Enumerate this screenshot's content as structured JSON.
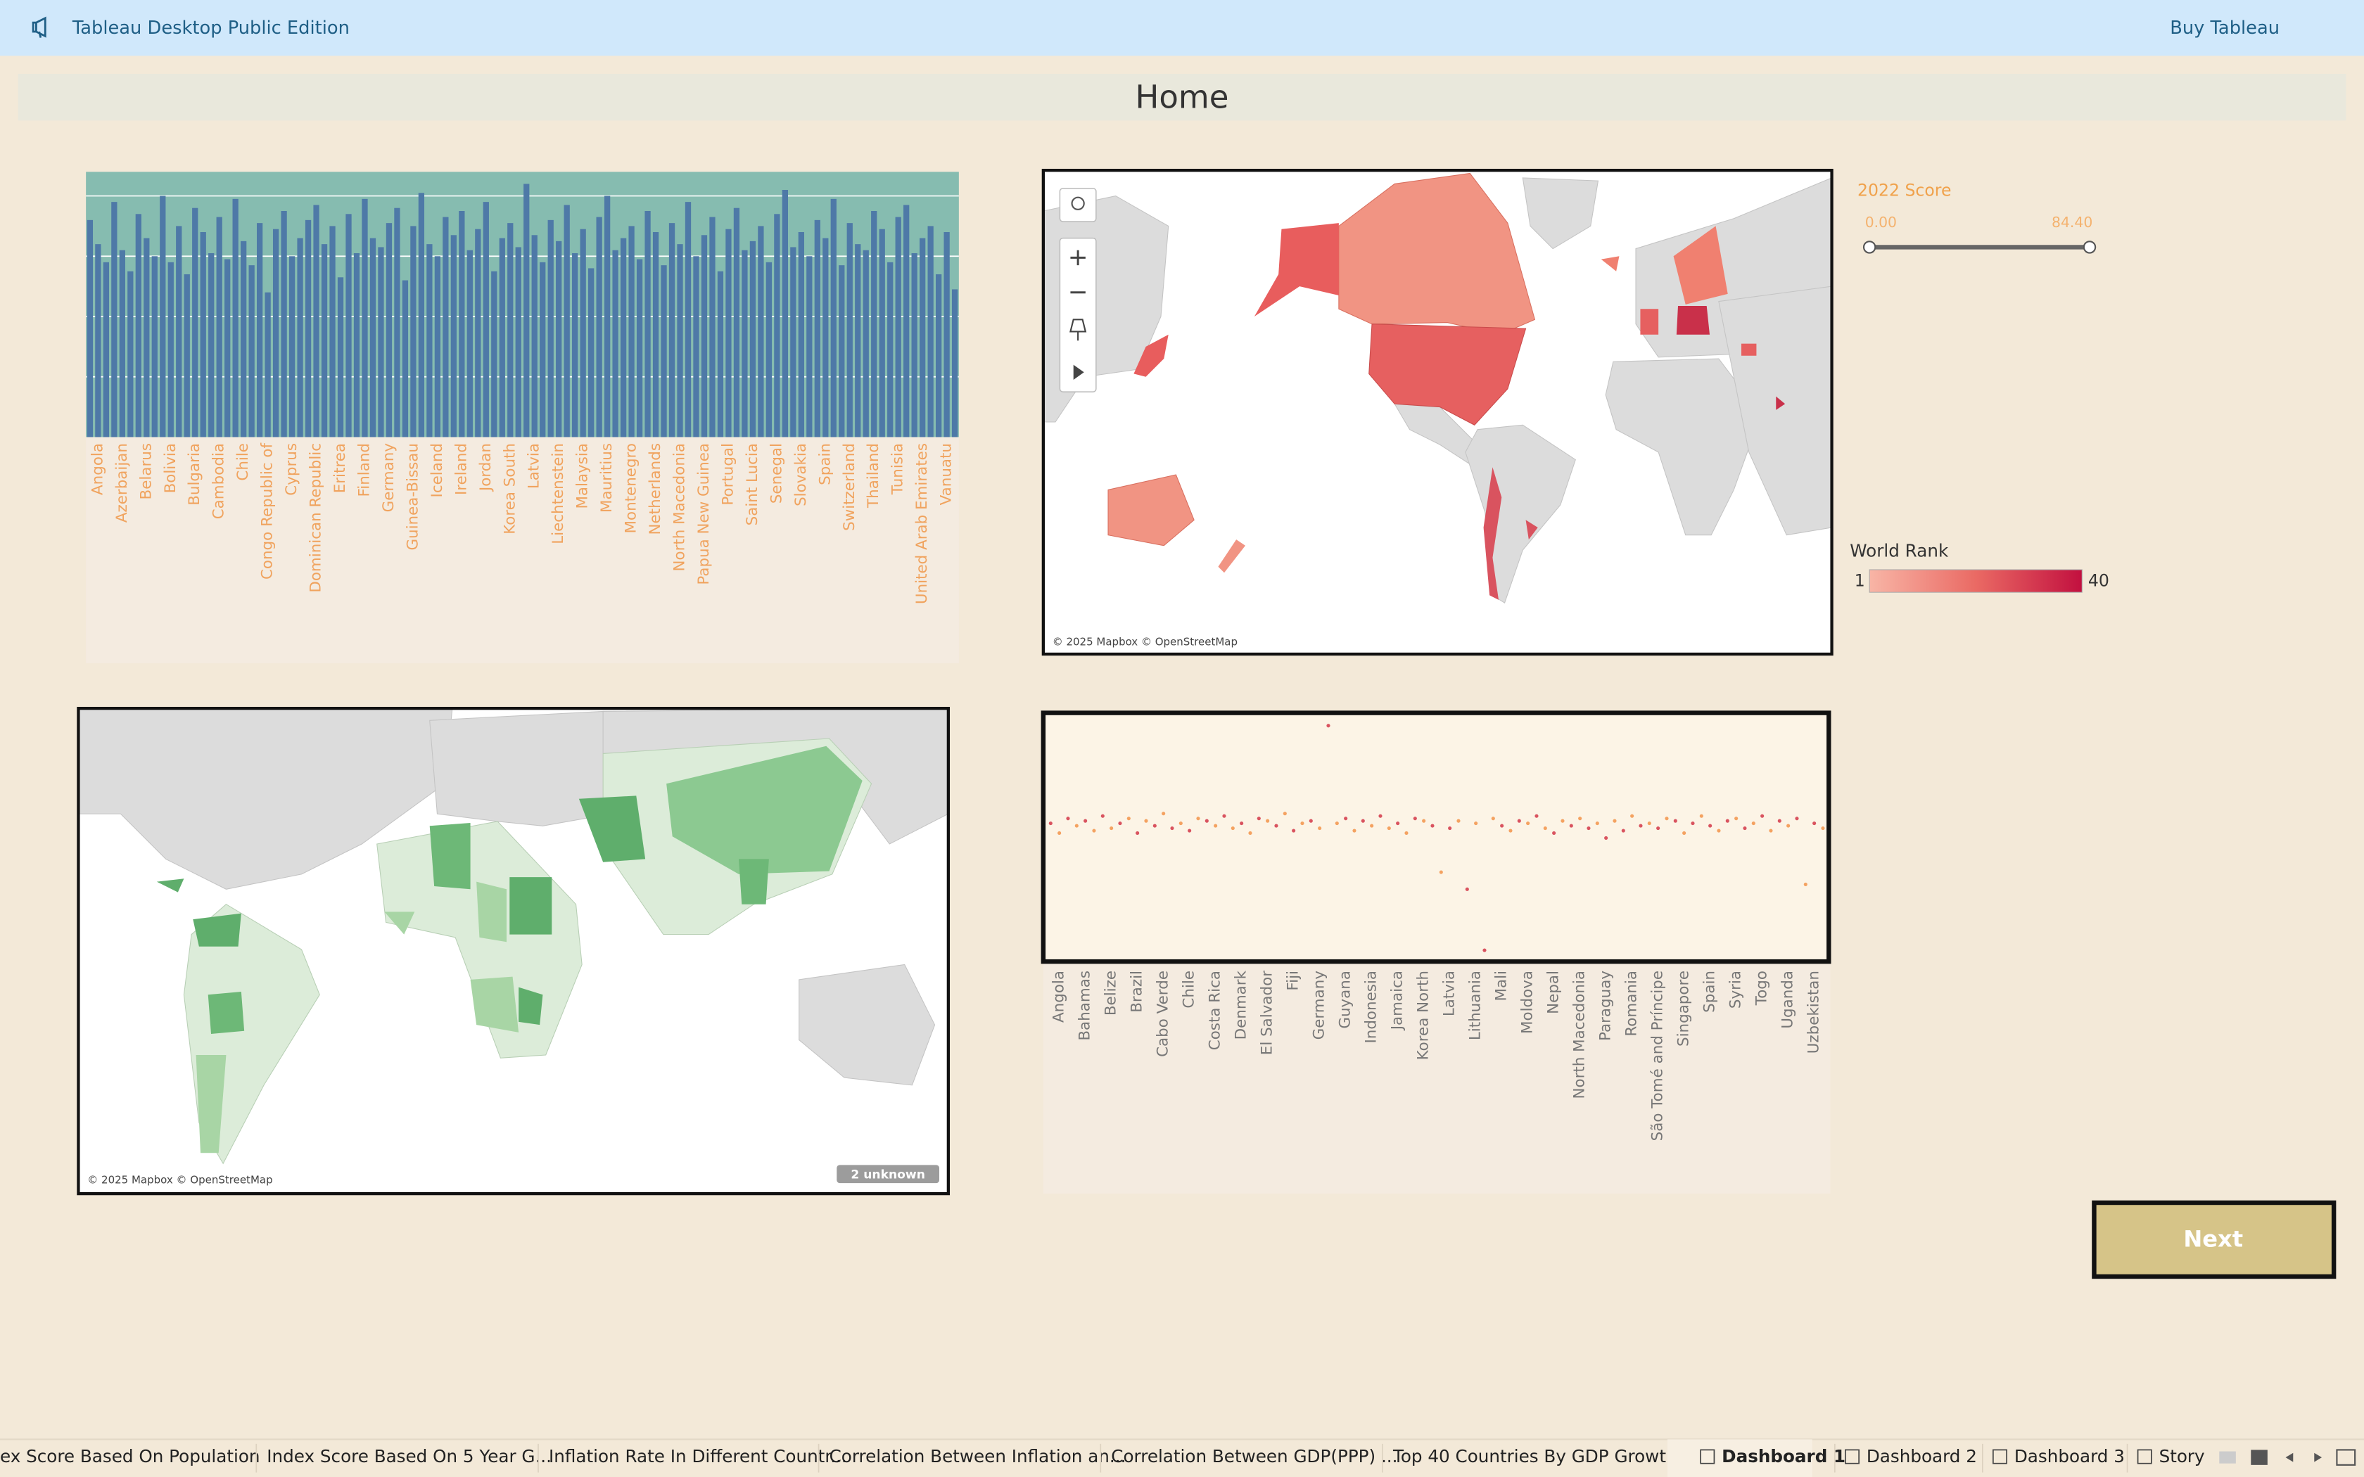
{
  "app_bar": {
    "title": "Tableau Desktop Public Edition",
    "action": "Buy Tableau"
  },
  "dashboard_title": "Home",
  "chart_data": [
    {
      "type": "bar",
      "color": "#4e79a7",
      "background": "#86bcb0",
      "ylim": [
        0,
        88
      ],
      "yticks": [
        20,
        40,
        60,
        80
      ],
      "grid": true,
      "categories": [
        null,
        "Angola",
        null,
        null,
        "Azerbaijan",
        null,
        null,
        "Belarus",
        null,
        null,
        "Bolivia",
        null,
        null,
        "Bulgaria",
        null,
        null,
        "Cambodia",
        null,
        null,
        "Chile",
        null,
        null,
        "Congo Republic of",
        null,
        null,
        "Cyprus",
        null,
        null,
        "Dominican Republic",
        null,
        null,
        "Eritrea",
        null,
        null,
        "Finland",
        null,
        null,
        "Germany",
        null,
        null,
        "Guinea-Bissau",
        null,
        null,
        "Iceland",
        null,
        null,
        "Ireland",
        null,
        null,
        "Jordan",
        null,
        null,
        "Korea South",
        null,
        null,
        "Latvia",
        null,
        null,
        "Liechtenstein",
        null,
        null,
        "Malaysia",
        null,
        null,
        "Mauritius",
        null,
        null,
        "Montenegro",
        null,
        null,
        "Netherlands",
        null,
        null,
        "North Macedonia",
        null,
        null,
        "Papua New Guinea",
        null,
        null,
        "Portugal",
        null,
        null,
        "Saint Lucia",
        null,
        null,
        "Senegal",
        null,
        null,
        "Slovakia",
        null,
        null,
        "Spain",
        null,
        null,
        "Switzerland",
        null,
        null,
        "Thailand",
        null,
        null,
        "Tunisia",
        null,
        null,
        "United Arab Emirates",
        null,
        null,
        "Vanuatu",
        null
      ],
      "values": [
        72,
        64,
        58,
        78,
        62,
        55,
        74,
        66,
        60,
        80,
        58,
        70,
        54,
        76,
        68,
        61,
        73,
        59,
        79,
        65,
        57,
        71,
        48,
        69,
        75,
        60,
        66,
        72,
        77,
        64,
        70,
        53,
        74,
        61,
        79,
        66,
        63,
        71,
        76,
        52,
        70,
        81,
        64,
        60,
        73,
        67,
        75,
        62,
        69,
        78,
        55,
        66,
        71,
        63,
        84,
        67,
        58,
        72,
        65,
        77,
        61,
        69,
        56,
        73,
        80,
        62,
        66,
        70,
        59,
        75,
        68,
        57,
        71,
        64,
        78,
        60,
        67,
        73,
        55,
        69,
        76,
        62,
        65,
        70,
        58,
        74,
        82,
        63,
        68,
        60,
        72,
        66,
        79,
        57,
        71,
        64,
        62,
        75,
        69,
        58,
        73,
        77,
        61,
        66,
        70,
        54,
        68,
        49
      ]
    },
    {
      "type": "scatter",
      "colors": [
        "#d9535f",
        "#f4a261"
      ],
      "background": "#fcf4e6",
      "ylim": [
        0,
        100
      ],
      "categories": [
        null,
        "Angola",
        null,
        null,
        "Bahamas",
        null,
        null,
        "Belize",
        null,
        null,
        "Brazil",
        null,
        null,
        "Cabo Verde",
        null,
        null,
        "Chile",
        null,
        null,
        "Costa Rica",
        null,
        null,
        "Denmark",
        null,
        null,
        "El Salvador",
        null,
        null,
        "Fiji",
        null,
        null,
        "Germany",
        null,
        null,
        "Guyana",
        null,
        null,
        "Indonesia",
        null,
        null,
        "Jamaica",
        null,
        null,
        "Korea North",
        null,
        null,
        "Latvia",
        null,
        null,
        "Lithuania",
        null,
        null,
        "Mali",
        null,
        null,
        "Moldova",
        null,
        null,
        "Nepal",
        null,
        null,
        "North Macedonia",
        null,
        null,
        "Paraguay",
        null,
        null,
        "Romania",
        null,
        null,
        "São Tomé and Príncipe",
        null,
        null,
        "Singapore",
        null,
        null,
        "Spain",
        null,
        null,
        "Syria",
        null,
        null,
        "Togo",
        null,
        null,
        "Uganda",
        null,
        null,
        "Uzbekistan",
        null
      ],
      "values": [
        56,
        52,
        58,
        55,
        57,
        53,
        59,
        54,
        56,
        58,
        52,
        57,
        55,
        60,
        54,
        56,
        53,
        58,
        57,
        55,
        59,
        54,
        56,
        52,
        58,
        57,
        55,
        60,
        53,
        56,
        57,
        54,
        96,
        56,
        58,
        53,
        57,
        55,
        59,
        54,
        56,
        52,
        58,
        57,
        55,
        36,
        54,
        57,
        29,
        56,
        4,
        58,
        55,
        53,
        57,
        56,
        59,
        54,
        52,
        57,
        55,
        58,
        54,
        56,
        50,
        57,
        53,
        59,
        55,
        56,
        54,
        58,
        57,
        52,
        56,
        59,
        55,
        53,
        57,
        58,
        54,
        56,
        59,
        53,
        57,
        55,
        58,
        31,
        56,
        54
      ]
    }
  ],
  "map_1": {
    "attribution": "© 2025 Mapbox © OpenStreetMap",
    "score_filter": {
      "title": "2022 Score",
      "min": "0.00",
      "max": "84.40"
    },
    "rank_legend": {
      "title": "World Rank",
      "min": "1",
      "max": "40"
    }
  },
  "map_2": {
    "attribution": "© 2025 Mapbox © OpenStreetMap",
    "unknown": "2 unknown"
  },
  "next_button": "Next",
  "tabs": [
    {
      "label": "ex Score Based On Population"
    },
    {
      "label": "Index Score Based On 5 Year G..."
    },
    {
      "label": "Inflation Rate In Different Countr..."
    },
    {
      "label": "Correlation Between Inflation an..."
    },
    {
      "label": "Correlation Between GDP(PPP) ..."
    },
    {
      "label": "Top 40 Countries By GDP Growt..."
    },
    {
      "label": "Dashboard 1",
      "selected": true
    },
    {
      "label": "Dashboard 2"
    },
    {
      "label": "Dashboard 3"
    },
    {
      "label": "Story"
    }
  ]
}
